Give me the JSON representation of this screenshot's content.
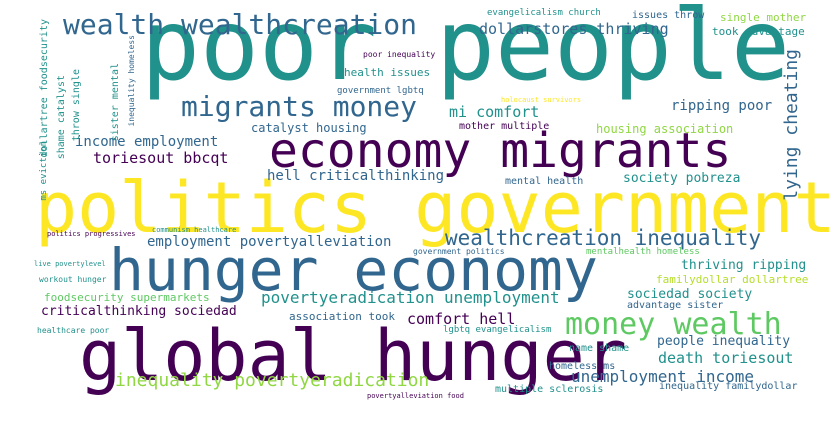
{
  "colors": {
    "background": "#ffffff",
    "dark_purple": "#440154",
    "blue": "#31668e",
    "teal": "#21918c",
    "green": "#35b779",
    "light_green": "#90d743",
    "yellow": "#fde725"
  },
  "words": [
    {
      "id": "w1",
      "text": "poor people",
      "color": "#21918c"
    },
    {
      "id": "w2",
      "text": "politics government",
      "color": "#fde725"
    },
    {
      "id": "w3",
      "text": "hunger economy",
      "color": "#31668e"
    },
    {
      "id": "w4",
      "text": "global hunger",
      "color": "#440154"
    },
    {
      "id": "w5",
      "text": "economy migrants",
      "color": "#440154"
    },
    {
      "id": "w6",
      "text": "wealth wealthcreation",
      "color": "#31668e"
    },
    {
      "id": "w7",
      "text": "migrants money",
      "color": "#31668e"
    },
    {
      "id": "w8",
      "text": "money wealth",
      "color": "#5ec962"
    },
    {
      "id": "w9",
      "text": "wealthcreation inequality",
      "color": "#31668e"
    },
    {
      "id": "w10",
      "text": "inequality povertyeradication",
      "color": "#90d743"
    },
    {
      "id": "w11",
      "text": "povertyeradication unemployment",
      "color": "#21918c"
    },
    {
      "id": "w12",
      "text": "unemployment income",
      "color": "#31668e"
    },
    {
      "id": "w13",
      "text": "dollarstores thriving",
      "color": "#31668e"
    },
    {
      "id": "w14",
      "text": "lying cheating",
      "color": "#31668e"
    },
    {
      "id": "w15",
      "text": "comfort hell",
      "color": "#440154"
    },
    {
      "id": "w16",
      "text": "toriesout bbcqt",
      "color": "#440154"
    },
    {
      "id": "w17",
      "text": "income employment",
      "color": "#31668e"
    },
    {
      "id": "w18",
      "text": "employment povertyalleviation",
      "color": "#31668e"
    },
    {
      "id": "w19",
      "text": "mi comfort",
      "color": "#21918c"
    },
    {
      "id": "w20",
      "text": "death toriesout",
      "color": "#21918c"
    },
    {
      "id": "w21",
      "text": "ripping poor",
      "color": "#31668e"
    },
    {
      "id": "w22",
      "text": "hell criticalthinking",
      "color": "#31668e"
    },
    {
      "id": "w23",
      "text": "criticalthinking sociedad",
      "color": "#440154"
    },
    {
      "id": "w24",
      "text": "society pobreza",
      "color": "#21918c"
    },
    {
      "id": "w25",
      "text": "thriving ripping",
      "color": "#21918c"
    },
    {
      "id": "w26",
      "text": "sociedad society",
      "color": "#21918c"
    },
    {
      "id": "w27",
      "text": "people inequality",
      "color": "#31668e"
    },
    {
      "id": "w28",
      "text": "health issues",
      "color": "#21918c"
    },
    {
      "id": "w29",
      "text": "catalyst housing",
      "color": "#31668e"
    },
    {
      "id": "w30",
      "text": "housing association",
      "color": "#90d743"
    },
    {
      "id": "w31",
      "text": "foodsecurity supermarkets",
      "color": "#5ec962"
    },
    {
      "id": "w32",
      "text": "association took",
      "color": "#31668e"
    },
    {
      "id": "w33",
      "text": "familydollar dollartree",
      "color": "#b5de2b"
    },
    {
      "id": "w34",
      "text": "single mother",
      "color": "#90d743"
    },
    {
      "id": "w35",
      "text": "took advantage",
      "color": "#21918c"
    },
    {
      "id": "w36",
      "text": "issues throw",
      "color": "#31668e"
    },
    {
      "id": "w37",
      "text": "evangelicalism church",
      "color": "#21918c"
    },
    {
      "id": "w38",
      "text": "dollartree foodsecurity",
      "color": "#21918c"
    },
    {
      "id": "w39",
      "text": "shame catalyst",
      "color": "#21918c"
    },
    {
      "id": "w40",
      "text": "throw single",
      "color": "#21918c"
    },
    {
      "id": "w41",
      "text": "sister mental",
      "color": "#21918c"
    },
    {
      "id": "w42",
      "text": "inequality homeless",
      "color": "#31668e"
    },
    {
      "id": "w43",
      "text": "poor inequality",
      "color": "#440154"
    },
    {
      "id": "w44",
      "text": "government lgbtq",
      "color": "#31668e"
    },
    {
      "id": "w45",
      "text": "holocaust survivors",
      "color": "#fde725"
    },
    {
      "id": "w46",
      "text": "mother multiple",
      "color": "#440154"
    },
    {
      "id": "w47",
      "text": "mental health",
      "color": "#31668e"
    },
    {
      "id": "w48",
      "text": "ms eviction",
      "color": "#21918c"
    },
    {
      "id": "w49",
      "text": "politics progressives",
      "color": "#440154"
    },
    {
      "id": "w50",
      "text": "communism healthcare",
      "color": "#21918c"
    },
    {
      "id": "w51",
      "text": "government politics",
      "color": "#31668e"
    },
    {
      "id": "w52",
      "text": "mentalhealth homeless",
      "color": "#5ec962"
    },
    {
      "id": "w53",
      "text": "live povertylevel",
      "color": "#21918c"
    },
    {
      "id": "w54",
      "text": "workout hunger",
      "color": "#21918c"
    },
    {
      "id": "w55",
      "text": "advantage sister",
      "color": "#31668e"
    },
    {
      "id": "w56",
      "text": "healthcare poor",
      "color": "#21918c"
    },
    {
      "id": "w57",
      "text": "lgbtq evangelicalism",
      "color": "#21918c"
    },
    {
      "id": "w58",
      "text": "name shame",
      "color": "#21918c"
    },
    {
      "id": "w59",
      "text": "homeless ms",
      "color": "#31668e"
    },
    {
      "id": "w60",
      "text": "multiple sclerosis",
      "color": "#21918c"
    },
    {
      "id": "w61",
      "text": "inequality familydollar",
      "color": "#31668e"
    },
    {
      "id": "w62",
      "text": "povertyalleviation food",
      "color": "#440154"
    }
  ]
}
